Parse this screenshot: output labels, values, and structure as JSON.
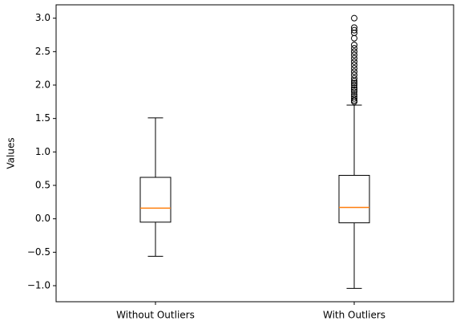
{
  "chart_data": {
    "type": "box",
    "y_label": "Values",
    "categories": [
      "Without Outliers",
      "With Outliers"
    ],
    "boxes": [
      {
        "whislo": -0.56,
        "q1": -0.05,
        "med": 0.16,
        "q3": 0.62,
        "whishi": 1.51,
        "fliers": []
      },
      {
        "whislo": -1.04,
        "q1": -0.06,
        "med": 0.17,
        "q3": 0.65,
        "whishi": 1.7,
        "fliers": [
          1.75,
          1.77,
          1.8,
          1.83,
          1.86,
          1.9,
          1.93,
          1.96,
          2.0,
          2.03,
          2.06,
          2.1,
          2.15,
          2.2,
          2.25,
          2.3,
          2.35,
          2.4,
          2.45,
          2.5,
          2.55,
          2.6,
          2.7,
          2.78,
          2.82,
          2.86,
          3.0
        ]
      }
    ],
    "median_color": "#ff7f0e",
    "ylim": [
      -1.24,
      3.2
    ],
    "yticks": [
      {
        "value": -1,
        "label": "−1.0"
      },
      {
        "value": -0.5,
        "label": "−0.5"
      },
      {
        "value": 0,
        "label": "0.0"
      },
      0.5,
      {
        "value": 1,
        "label": "1.0"
      },
      1.5,
      {
        "value": 2,
        "label": "2.0"
      },
      2.5,
      {
        "value": 3,
        "label": "3.0"
      }
    ]
  }
}
